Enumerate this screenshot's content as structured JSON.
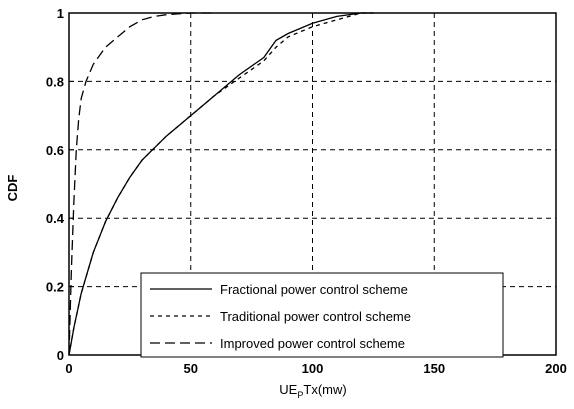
{
  "chart_data": {
    "type": "line",
    "xlabel": {
      "main": "UE",
      "sub": "P",
      "rest": "Tx(mw)"
    },
    "ylabel": "CDF",
    "xlim": [
      0,
      200
    ],
    "ylim": [
      0,
      1
    ],
    "x_ticks": [
      "0",
      "50",
      "100",
      "150",
      "200"
    ],
    "y_ticks": [
      "0",
      "0.2",
      "0.4",
      "0.6",
      "0.8",
      "1"
    ],
    "x_tick_values": [
      0,
      50,
      100,
      150,
      200
    ],
    "y_tick_values": [
      0,
      0.2,
      0.4,
      0.6,
      0.8,
      1
    ],
    "grid": true,
    "legend_position": "bottom-right",
    "series": [
      {
        "name": "Fractional power control scheme",
        "dash": "solid",
        "color": "#000000",
        "x": [
          0,
          2,
          5,
          10,
          15,
          20,
          25,
          30,
          40,
          50,
          60,
          70,
          80,
          85,
          90,
          100,
          110,
          120,
          125
        ],
        "y": [
          0,
          0.08,
          0.18,
          0.3,
          0.39,
          0.46,
          0.52,
          0.57,
          0.64,
          0.7,
          0.76,
          0.82,
          0.87,
          0.92,
          0.94,
          0.97,
          0.99,
          1.0,
          1.0
        ]
      },
      {
        "name": "Traditional power control scheme",
        "dash": "4,4",
        "color": "#000000",
        "x": [
          0,
          2,
          5,
          10,
          15,
          20,
          25,
          30,
          40,
          50,
          60,
          70,
          80,
          85,
          90,
          100,
          110,
          120,
          125
        ],
        "y": [
          0,
          0.08,
          0.18,
          0.3,
          0.39,
          0.46,
          0.52,
          0.57,
          0.64,
          0.7,
          0.76,
          0.81,
          0.86,
          0.9,
          0.93,
          0.96,
          0.98,
          1.0,
          1.0
        ]
      },
      {
        "name": "Improved power control scheme",
        "dash": "10,5",
        "color": "#000000",
        "x": [
          0,
          1,
          2,
          3,
          4,
          5,
          7,
          10,
          15,
          20,
          25,
          30,
          35,
          40,
          50,
          60
        ],
        "y": [
          0,
          0.25,
          0.45,
          0.6,
          0.69,
          0.75,
          0.8,
          0.85,
          0.9,
          0.93,
          0.96,
          0.98,
          0.99,
          0.995,
          1.0,
          1.0
        ]
      }
    ]
  }
}
